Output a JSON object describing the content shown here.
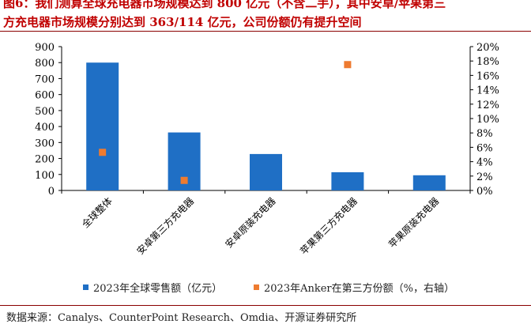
{
  "title": {
    "line1": "图6：我们测算全球充电器市场规模达到 800 亿元（不含二手），其中安卓/苹果第三",
    "line2": "方充电器市场规模分别达到 363/114 亿元，公司份额仍有提升空间"
  },
  "chart_data": {
    "type": "bar",
    "categories": [
      "全球整体",
      "安卓第三方充电器",
      "安卓原装充电器",
      "苹果第三方充电器",
      "苹果原装充电器"
    ],
    "series": [
      {
        "name": "2023年全球零售额（亿元）",
        "type": "bar",
        "axis": "left",
        "values": [
          800,
          363,
          228,
          114,
          95
        ],
        "color": "#1f6fc5"
      },
      {
        "name": "2023年Anker在第三方份额（%，右轴）",
        "type": "scatter",
        "axis": "right",
        "values": [
          5.3,
          1.4,
          null,
          17.5,
          null
        ],
        "color": "#ee7b30"
      }
    ],
    "y_left": {
      "ylim": [
        0,
        900
      ],
      "ticks": [
        "0",
        "100",
        "200",
        "300",
        "400",
        "500",
        "600",
        "700",
        "800",
        "900"
      ]
    },
    "y_right": {
      "ylim": [
        0,
        20
      ],
      "ticks": [
        "0%",
        "2%",
        "4%",
        "6%",
        "8%",
        "10%",
        "12%",
        "14%",
        "16%",
        "18%",
        "20%"
      ]
    },
    "legend_position": "bottom"
  },
  "legend": {
    "bar_label": "2023年全球零售额（亿元）",
    "marker_label": "2023年Anker在第三方份额（%，右轴）",
    "bar_color": "#1f6fc5",
    "marker_color": "#ee7b30"
  },
  "source": "数据来源：Canalys、CounterPoint Research、Omdia、开源证券研究所"
}
